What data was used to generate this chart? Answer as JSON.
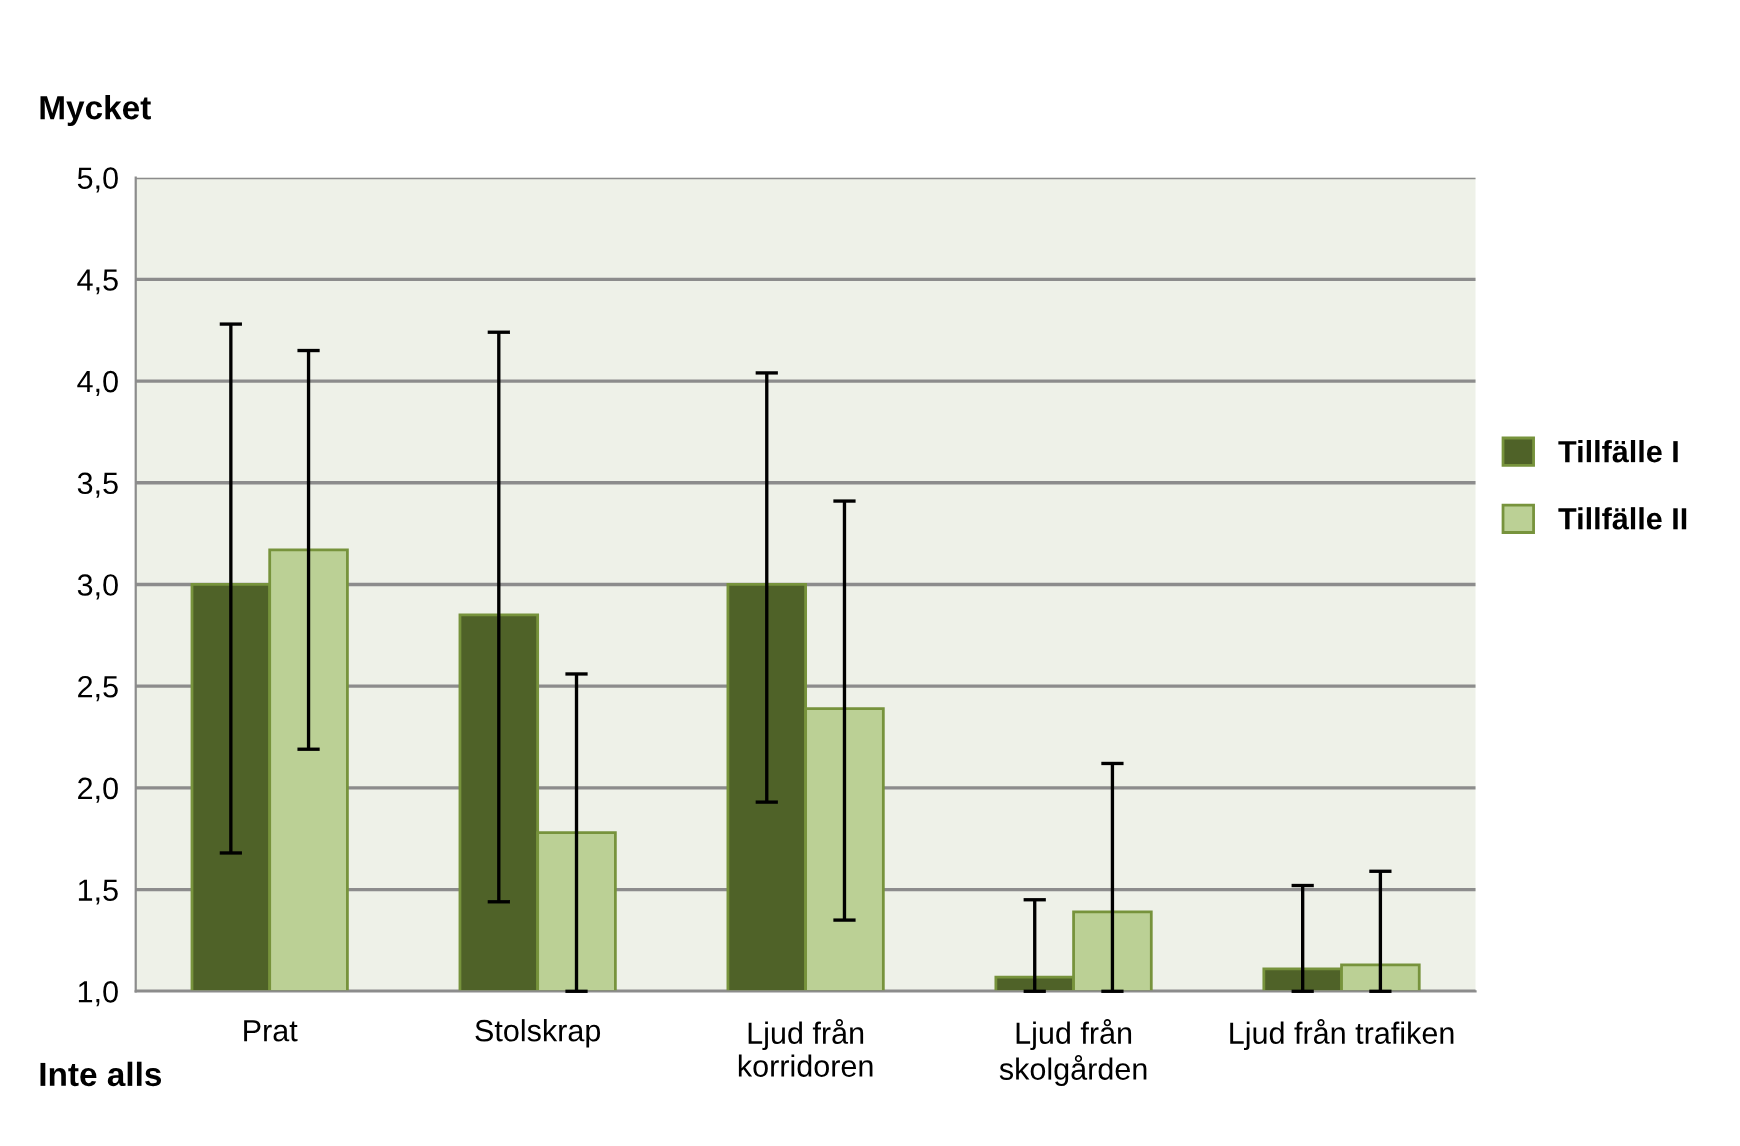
{
  "chart_data": {
    "type": "bar",
    "categories": [
      "Prat",
      "Stolskrap",
      "Ljud från\nkorridoren",
      "Ljud från\nskolgården",
      "Ljud från trafiken"
    ],
    "series": [
      {
        "name": "Tillfälle I",
        "color": "#4f6228",
        "values": [
          3.0,
          2.85,
          3.0,
          1.07,
          1.11
        ],
        "errors": [
          [
            1.68,
            4.28
          ],
          [
            1.44,
            4.24
          ],
          [
            1.93,
            4.04
          ],
          [
            1.0,
            1.45
          ],
          [
            1.0,
            1.52
          ]
        ]
      },
      {
        "name": "Tillfälle II",
        "color": "#bbd095",
        "values": [
          3.17,
          1.78,
          2.39,
          1.39,
          1.13
        ],
        "errors": [
          [
            2.19,
            4.15
          ],
          [
            1.0,
            2.56
          ],
          [
            1.35,
            3.41
          ],
          [
            1.0,
            2.12
          ],
          [
            1.0,
            1.59
          ]
        ]
      }
    ],
    "ylim": [
      1.0,
      5.0
    ],
    "yticks": [
      {
        "value": 1.0,
        "label": "1,0"
      },
      {
        "value": 1.5,
        "label": "1,5"
      },
      {
        "value": 2.0,
        "label": "2,0"
      },
      {
        "value": 2.5,
        "label": "2,5"
      },
      {
        "value": 3.0,
        "label": "3,0"
      },
      {
        "value": 3.5,
        "label": "3,5"
      },
      {
        "value": 4.0,
        "label": "4,0"
      },
      {
        "value": 4.5,
        "label": "4,5"
      },
      {
        "value": 5.0,
        "label": "5,0"
      }
    ],
    "annotations": [
      "Mycket",
      "Inte alls"
    ],
    "grid": "y",
    "legend": "right"
  }
}
